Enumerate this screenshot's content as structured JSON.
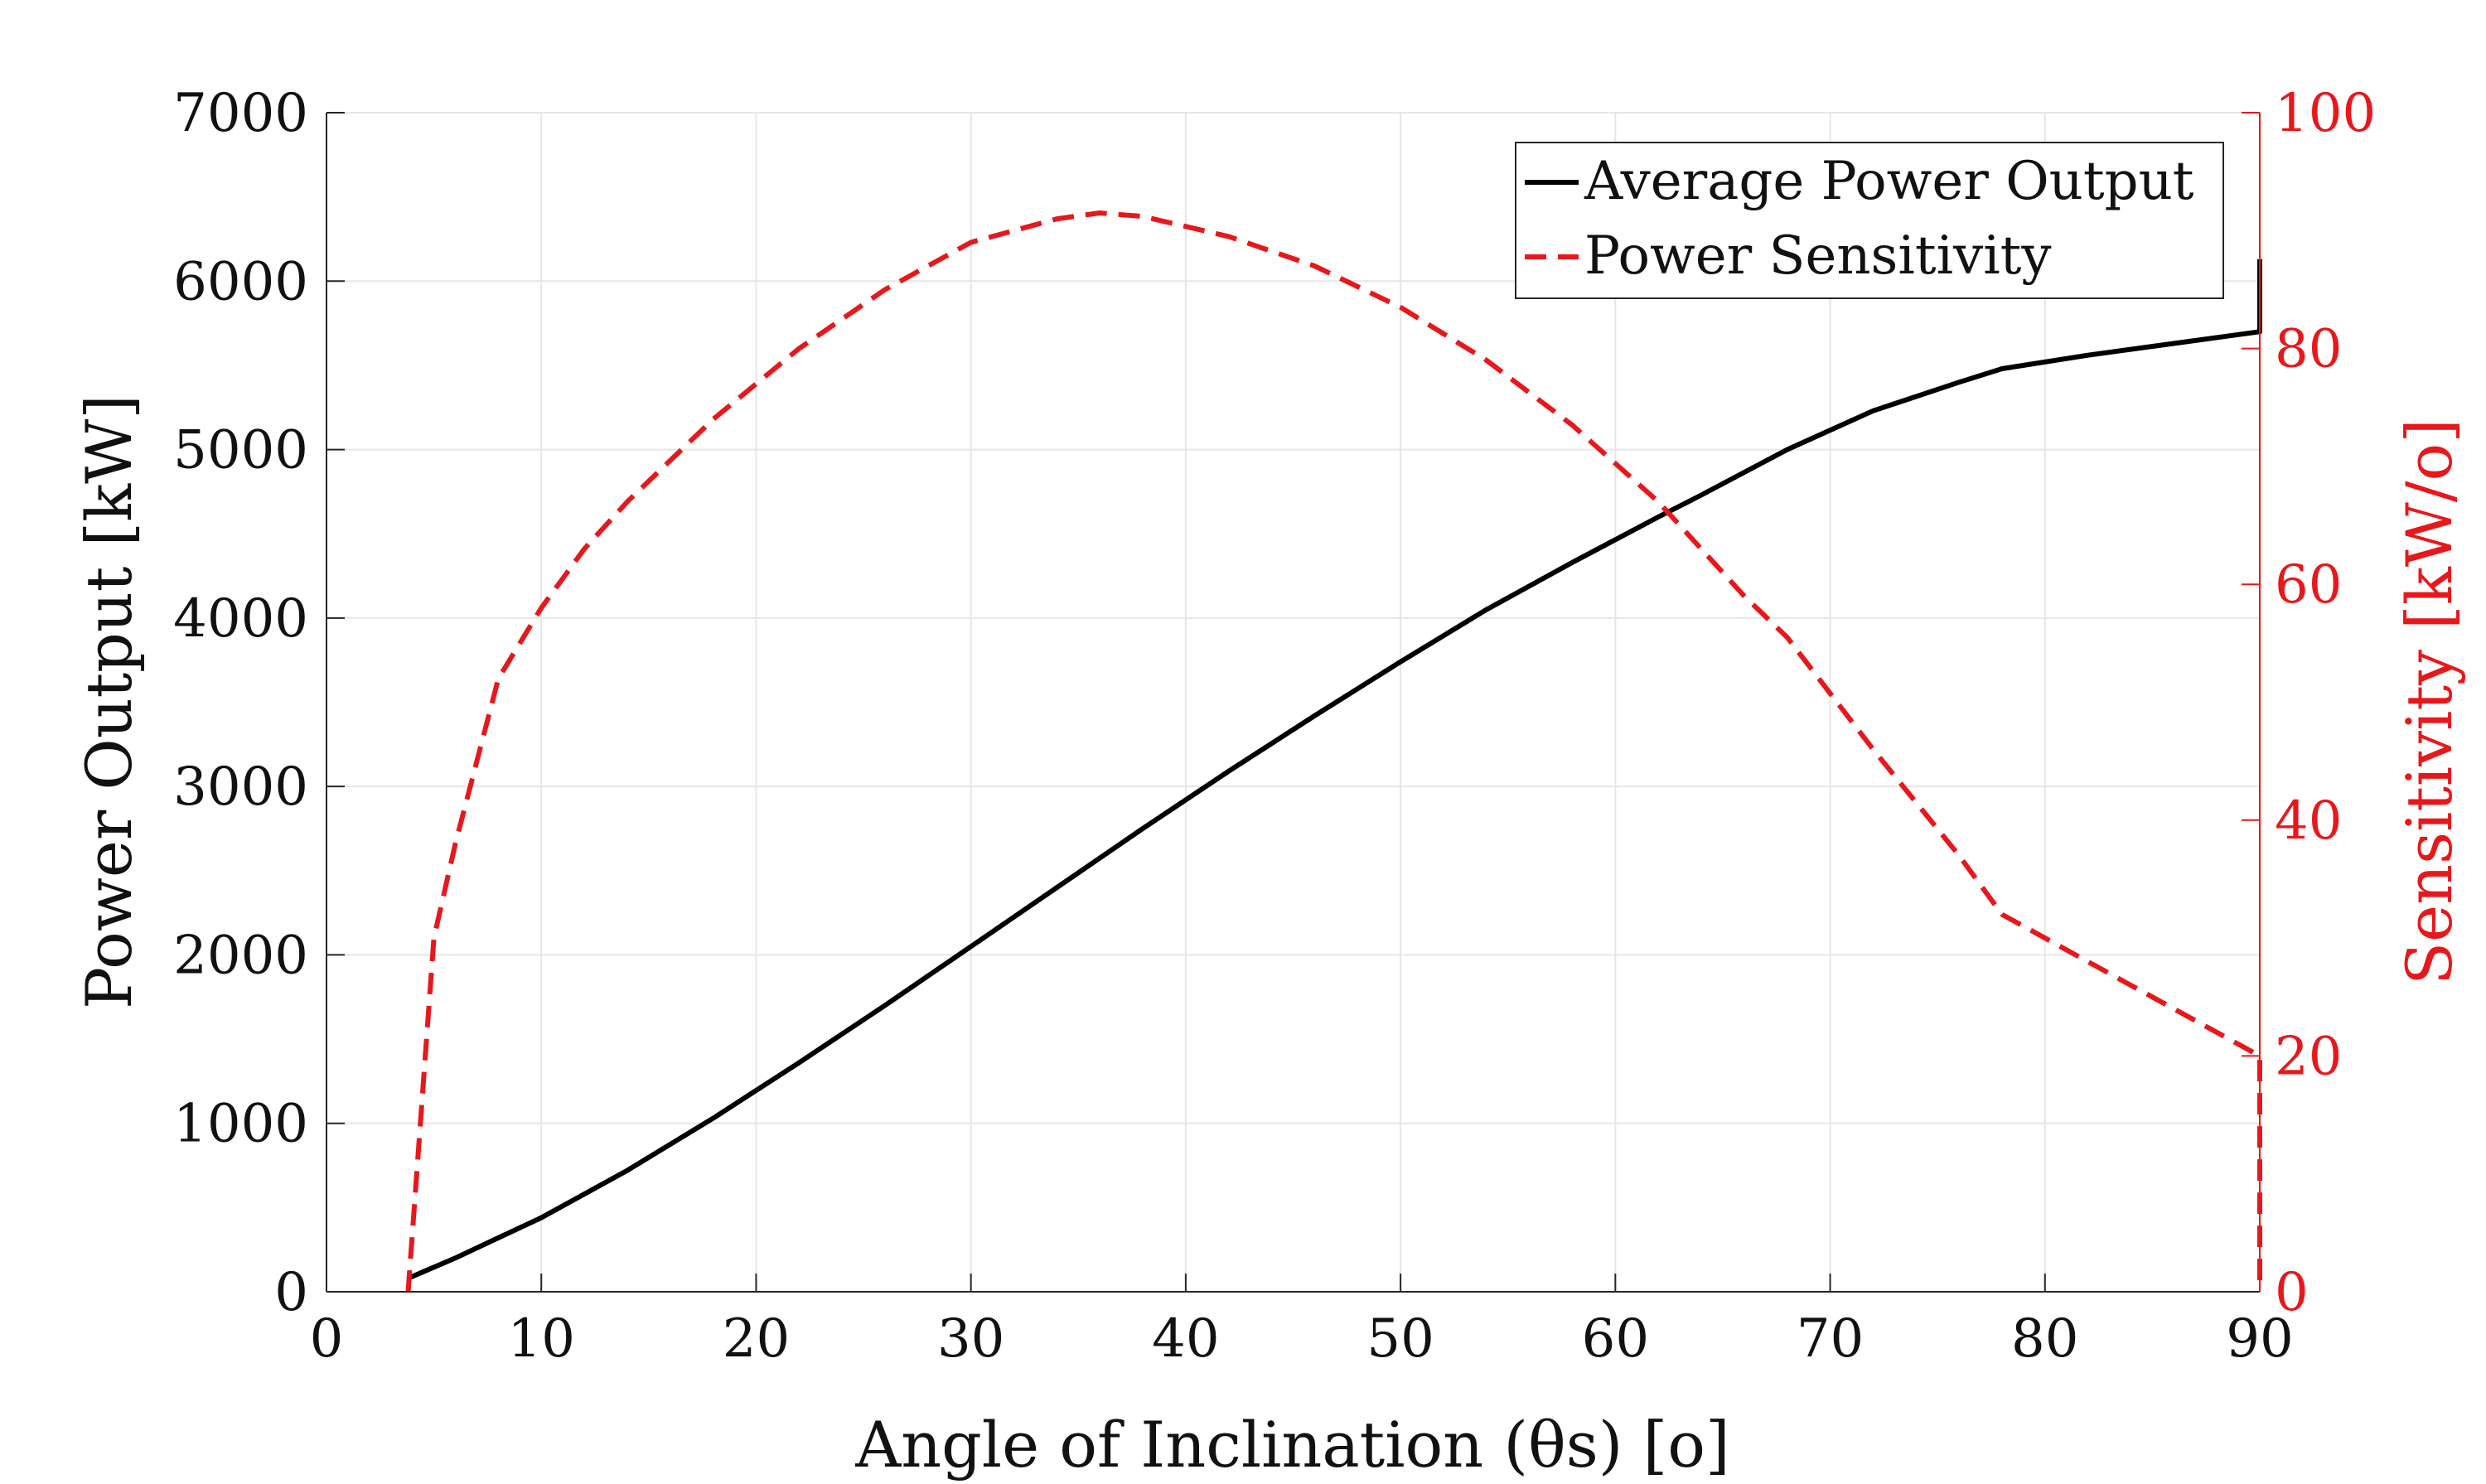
{
  "chart_data": {
    "type": "line",
    "title": "",
    "xlabel": "Angle of Inclination (θs) [o]",
    "ylabel_left": "Power Output [kW]",
    "ylabel_right": "Sensitivity [kW/o]",
    "xlim": [
      0,
      90
    ],
    "ylim_left": [
      0,
      7000
    ],
    "ylim_right": [
      0,
      100
    ],
    "x_ticks": [
      "0",
      "10",
      "20",
      "30",
      "40",
      "50",
      "60",
      "70",
      "80",
      "90"
    ],
    "y_ticks_left": [
      "0",
      "1000",
      "2000",
      "3000",
      "4000",
      "5000",
      "6000",
      "7000"
    ],
    "y_ticks_right": [
      "0",
      "20",
      "40",
      "60",
      "80",
      "100"
    ],
    "grid": true,
    "legend_position": "top-right",
    "colors": {
      "power": "#000000",
      "sensitivity": "#e8171b",
      "grid": "#e6e6e6",
      "axis": "#262626"
    },
    "series": [
      {
        "name": "Average Power Output",
        "axis": "left",
        "style": "solid",
        "x": [
          3.8,
          6,
          8,
          10,
          14,
          18,
          22,
          26,
          30,
          34,
          38,
          42,
          46,
          50,
          54,
          58,
          62,
          64,
          68,
          72,
          76,
          78,
          82,
          86,
          90,
          90
        ],
        "y": [
          80,
          200,
          320,
          440,
          720,
          1030,
          1360,
          1700,
          2050,
          2400,
          2750,
          3090,
          3420,
          3740,
          4050,
          4330,
          4600,
          4730,
          5000,
          5230,
          5400,
          5480,
          5560,
          5630,
          5700,
          6130
        ]
      },
      {
        "name": "Power Sensitivity",
        "axis": "right",
        "style": "dashed",
        "x": [
          3.8,
          5,
          6,
          8,
          10,
          12,
          14,
          18,
          22,
          26,
          30,
          34,
          36,
          38,
          42,
          46,
          50,
          54,
          58,
          62,
          66,
          68,
          72,
          76,
          78,
          82,
          86,
          90,
          90
        ],
        "y": [
          0,
          30,
          38,
          52,
          58,
          63,
          67,
          74,
          80,
          85,
          89,
          91,
          91.5,
          91.2,
          89.5,
          87,
          83.5,
          79,
          73.5,
          67,
          59,
          55.5,
          46,
          37,
          32,
          28,
          24,
          20,
          0
        ]
      }
    ]
  }
}
